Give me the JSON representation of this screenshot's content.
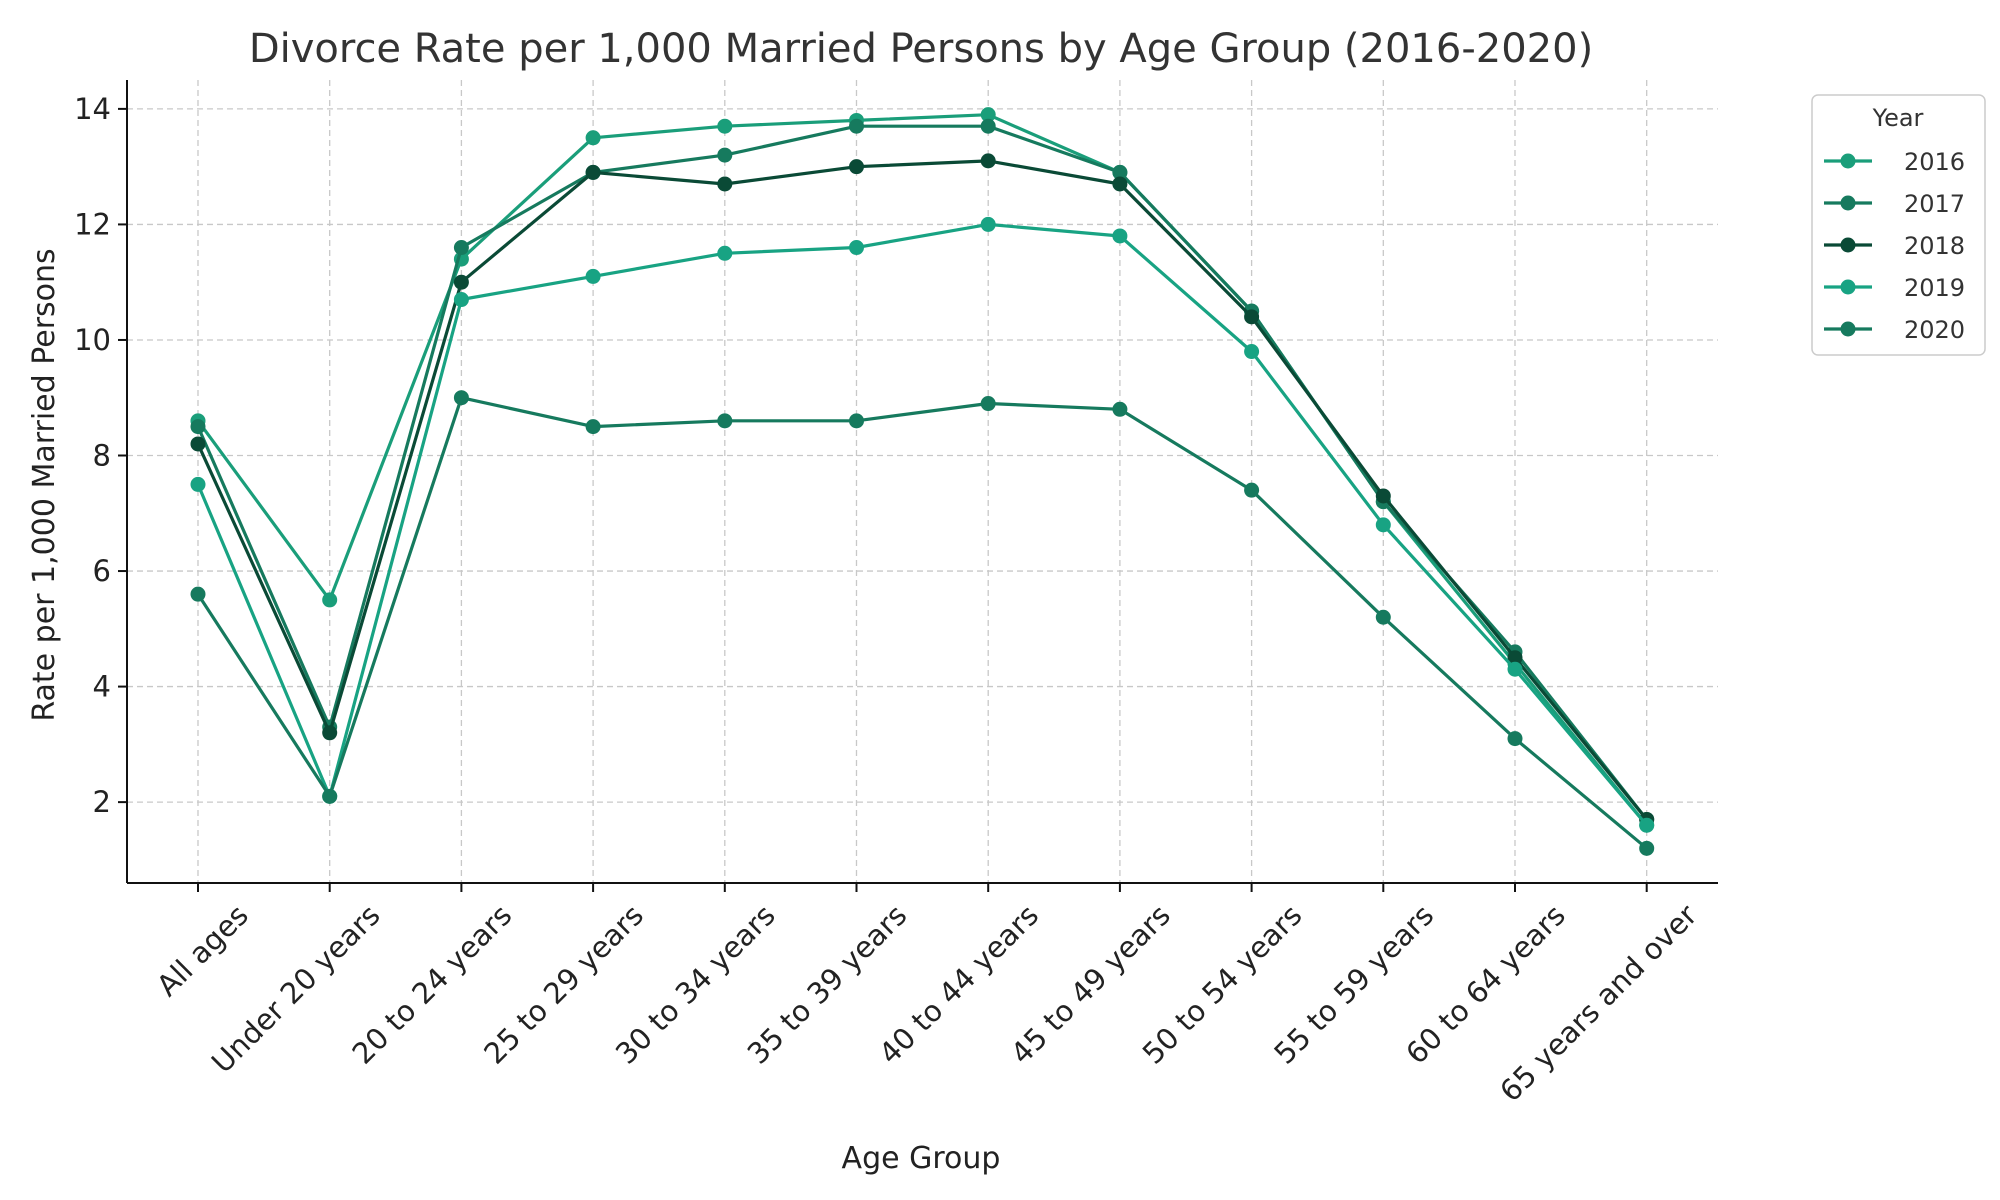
{
  "chart_data": {
    "type": "line",
    "title": "Divorce Rate per 1,000 Married Persons by Age Group (2016-2020)",
    "xlabel": "Age Group",
    "ylabel": "Rate per 1,000 Married Persons",
    "categories": [
      "All ages",
      "Under 20 years",
      "20 to 24 years",
      "25 to 29 years",
      "30 to 34 years",
      "35 to 39 years",
      "40 to 44 years",
      "45 to 49 years",
      "50 to 54 years",
      "55 to 59 years",
      "60 to 64 years",
      "65 years and over"
    ],
    "ylim": [
      0.6,
      14.5
    ],
    "yticks": [
      2,
      4,
      6,
      8,
      10,
      12,
      14
    ],
    "grid": true,
    "legend": {
      "title": "Year",
      "placement": "outside-top-right"
    },
    "series": [
      {
        "name": "2016",
        "color": "#1a9e7a",
        "values": [
          8.6,
          5.5,
          11.4,
          13.5,
          13.7,
          13.8,
          13.9,
          12.9,
          10.5,
          7.2,
          4.4,
          1.6
        ]
      },
      {
        "name": "2017",
        "color": "#167a5e",
        "values": [
          8.5,
          3.3,
          11.6,
          12.9,
          13.2,
          13.7,
          13.7,
          12.9,
          10.5,
          7.2,
          4.6,
          1.7
        ]
      },
      {
        "name": "2018",
        "color": "#0a4a36",
        "values": [
          8.2,
          3.2,
          11.0,
          12.9,
          12.7,
          13.0,
          13.1,
          12.7,
          10.4,
          7.3,
          4.5,
          1.7
        ]
      },
      {
        "name": "2019",
        "color": "#18a383",
        "values": [
          7.5,
          2.1,
          10.7,
          11.1,
          11.5,
          11.6,
          12.0,
          11.8,
          9.8,
          6.8,
          4.3,
          1.6
        ]
      },
      {
        "name": "2020",
        "color": "#167a5e",
        "values": [
          5.6,
          2.1,
          9.0,
          8.5,
          8.6,
          8.6,
          8.9,
          8.8,
          7.4,
          5.2,
          3.1,
          1.2
        ]
      }
    ]
  }
}
